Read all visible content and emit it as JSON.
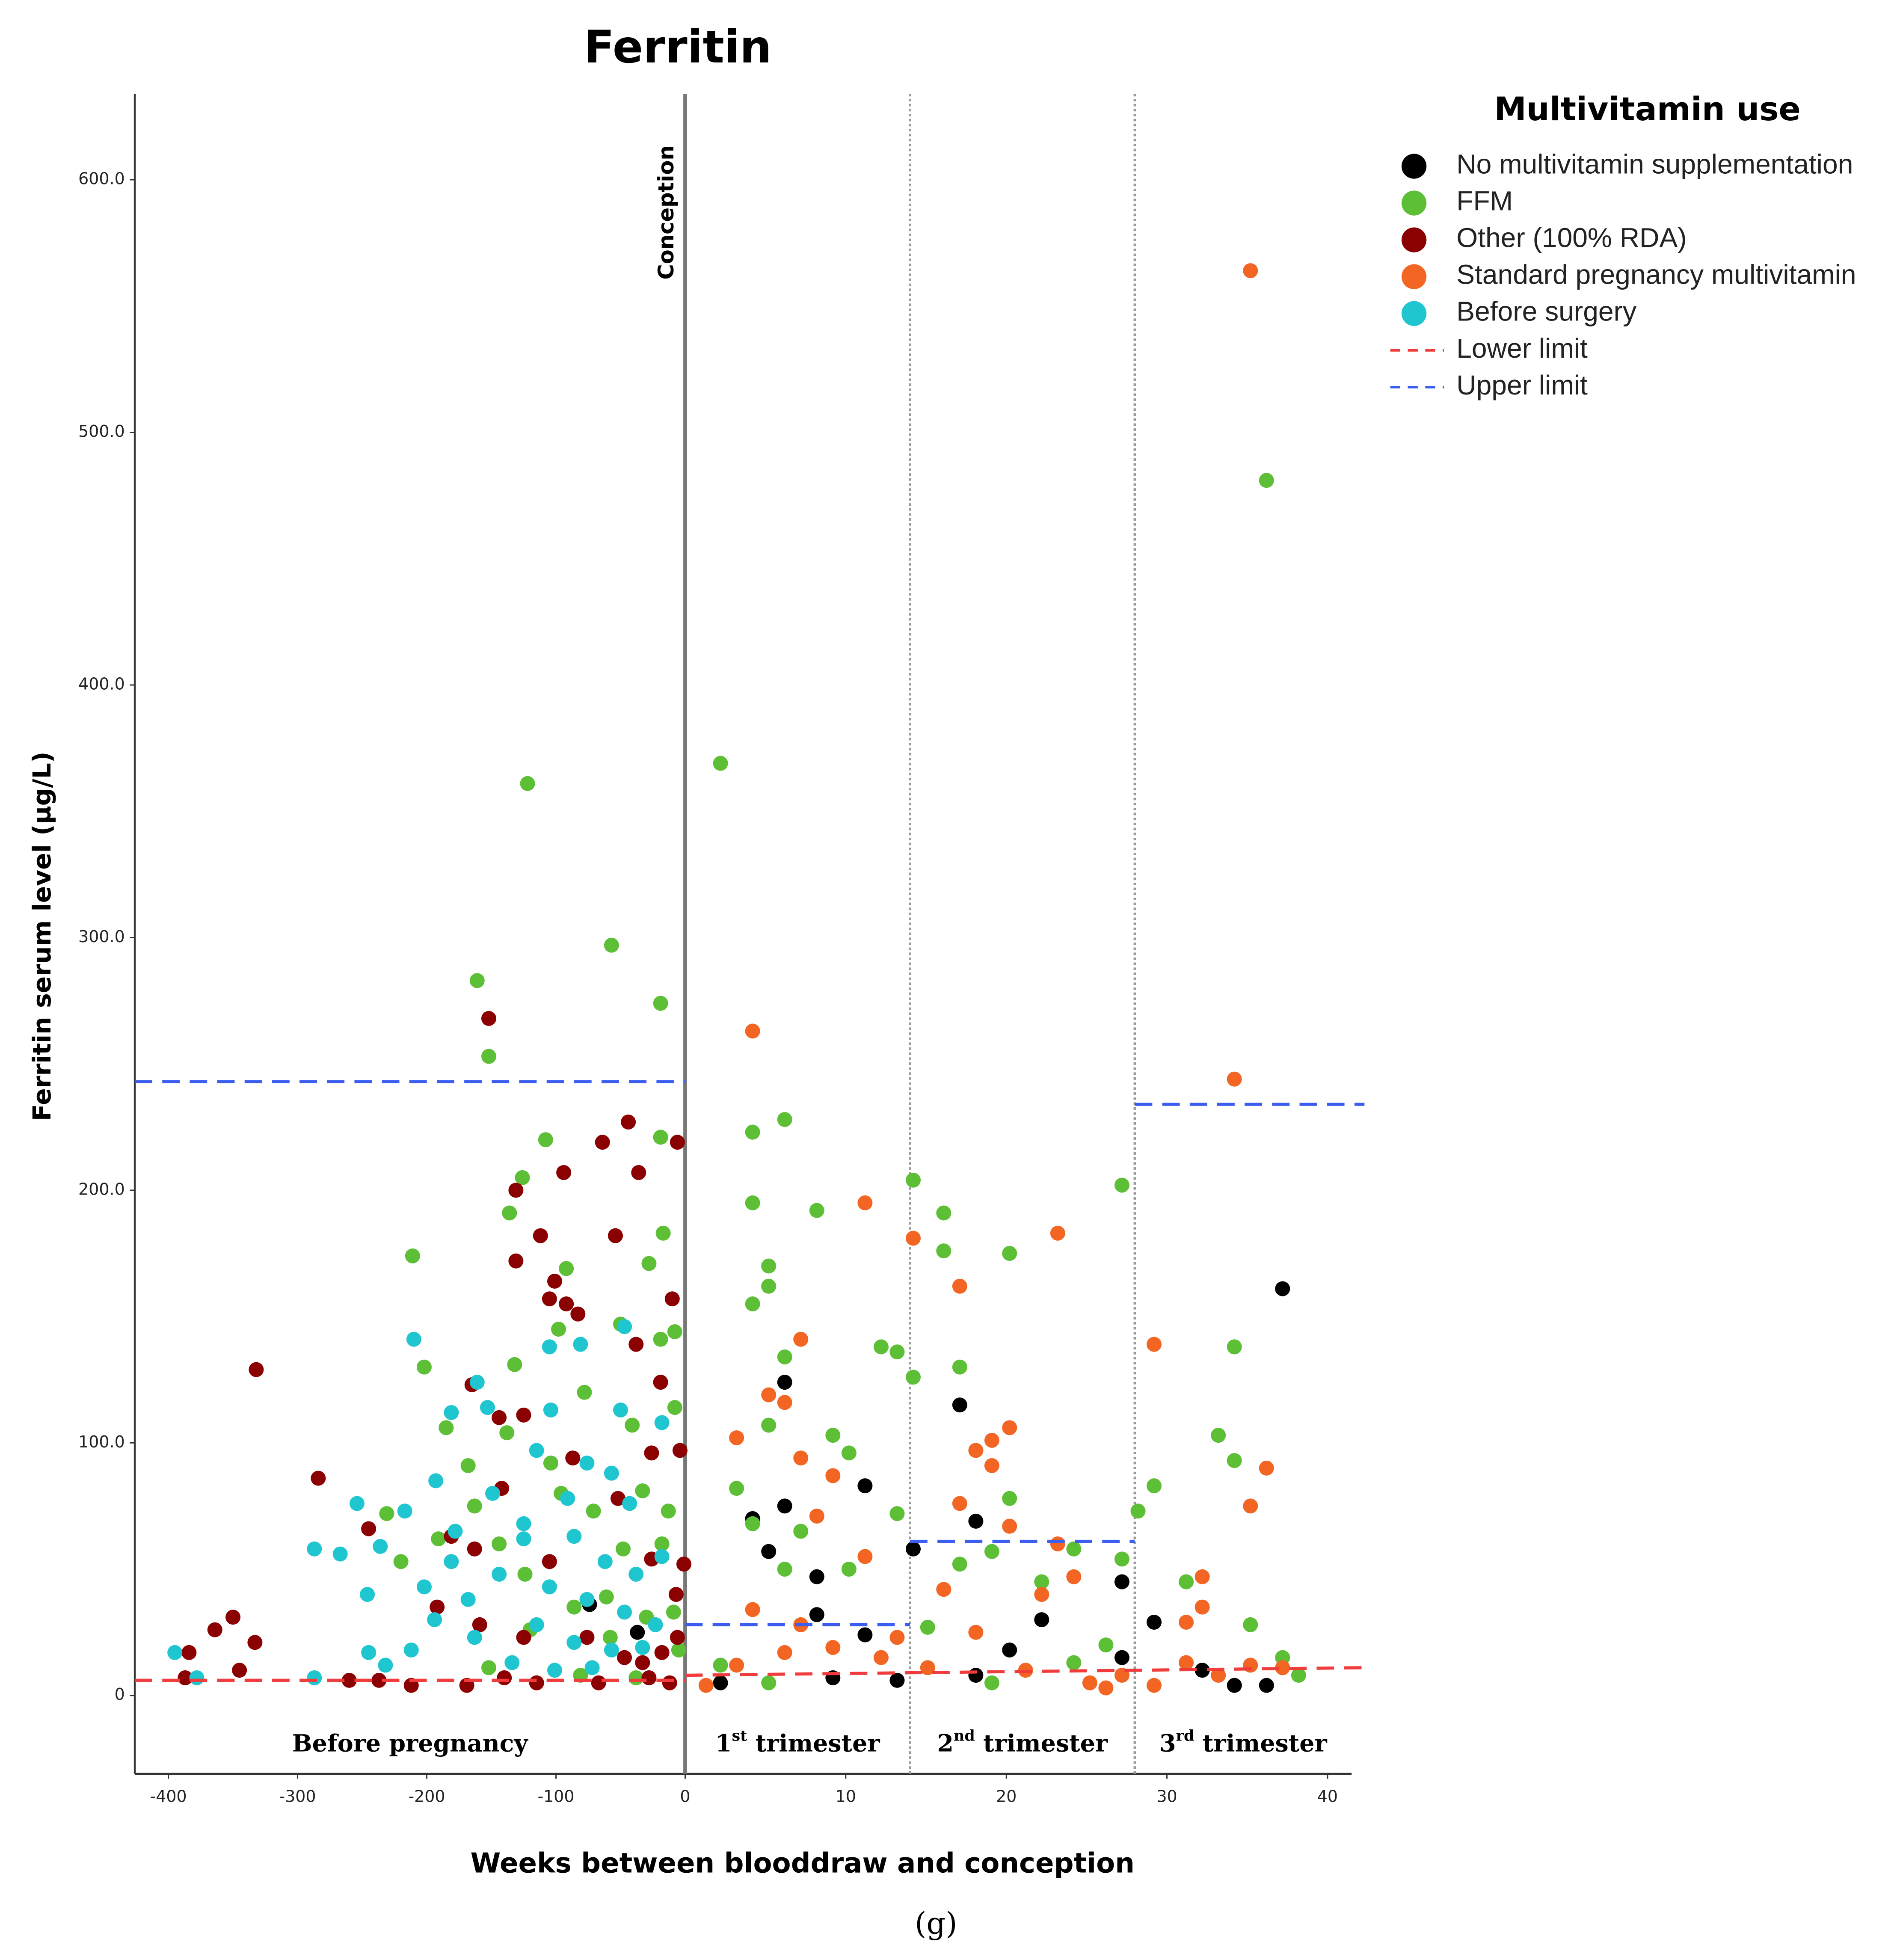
{
  "chart_data": {
    "type": "scatter",
    "title": "Ferritin",
    "xlabel": "Weeks between blooddraw and conception",
    "ylabel": "Ferritin serum level (µg/L)",
    "caption": "(g)",
    "legend_title": "Multivitamin use",
    "legend": "right",
    "xscale": "piecewise",
    "xbreak": 0,
    "xlim": [
      -426,
      41.5
    ],
    "xticks": [
      -400,
      -300,
      -200,
      -100,
      0,
      10,
      20,
      30,
      40
    ],
    "ylim": [
      -31,
      634
    ],
    "yticks": [
      0,
      {
        "value": 100,
        "label": "100.0"
      },
      {
        "value": 200,
        "label": "200.0"
      },
      {
        "value": 300,
        "label": "300.0"
      },
      {
        "value": 400,
        "label": "400.0"
      },
      {
        "value": 500,
        "label": "500.0"
      },
      {
        "value": 600,
        "label": "600.0"
      }
    ],
    "vlines": [
      {
        "x": 0,
        "style": "solid",
        "label": "Conception"
      },
      {
        "x": 14,
        "style": "dotted"
      },
      {
        "x": 28,
        "style": "dotted"
      }
    ],
    "regions": [
      [
        "Before pregnancy"
      ],
      [
        "1",
        "st",
        " trimester"
      ],
      [
        "2",
        "nd",
        " trimester"
      ],
      [
        "3",
        "rd",
        " trimester"
      ]
    ],
    "series": [
      {
        "name": "No multivitamin supplementation",
        "color": "#000000",
        "x": [
          2.2,
          4.2,
          5.2,
          6.2,
          6.2,
          8.2,
          8.2,
          9.2,
          11.2,
          11.2,
          13.2,
          14.2,
          17.1,
          18.1,
          18.1,
          20.2,
          22.2,
          27.2,
          27.2,
          29.2,
          32.2,
          34.2,
          36.2,
          37.2,
          -74,
          -37
        ],
        "y": [
          5,
          70,
          57,
          124,
          75,
          47,
          32,
          7,
          83,
          24,
          6,
          58,
          115,
          69,
          8,
          18,
          30,
          45,
          15,
          29,
          10,
          4,
          4,
          161,
          36,
          25
        ]
      },
      {
        "name": "FFM",
        "color": "#5dbf35",
        "x": [
          2.2,
          4.2,
          4.2,
          6.2,
          8.2,
          5.2,
          5.2,
          4.2,
          6.2,
          5.2,
          9.2,
          10.2,
          12.2,
          13.2,
          14.2,
          14.2,
          16.1,
          16.1,
          17.1,
          18.1,
          20.2,
          20.2,
          27.2,
          28.2,
          29.2,
          34.2,
          33.2,
          34.2,
          36.2,
          35.2,
          31.2,
          37.2,
          38.2,
          3.2,
          4.2,
          6.2,
          7.2,
          10.2,
          13.2,
          15.1,
          17.1,
          19.1,
          22.2,
          24.2,
          27.2,
          26.2,
          24.2,
          19.1,
          2.2,
          5.2,
          -122,
          -57,
          -161,
          -19,
          -152,
          -108,
          -19,
          -126,
          -136,
          -211,
          -92,
          -17,
          -28,
          -202,
          -132,
          -98,
          -50,
          -19,
          -8,
          -185,
          -138,
          -78,
          -41,
          -8,
          -231,
          -191,
          -163,
          -144,
          -124,
          -96,
          -71,
          -61,
          -48,
          -33,
          -13,
          -120,
          -86,
          -58,
          -30,
          -5,
          -152,
          -81,
          -38,
          -9,
          -220,
          -168,
          -104,
          -18
        ],
        "y": [
          369,
          223,
          195,
          228,
          192,
          170,
          162,
          155,
          134,
          107,
          103,
          96,
          138,
          136,
          204,
          126,
          191,
          176,
          130,
          97,
          175,
          78,
          202,
          73,
          83,
          138,
          103,
          93,
          481,
          28,
          45,
          15,
          8,
          82,
          68,
          50,
          65,
          50,
          72,
          27,
          52,
          57,
          45,
          58,
          54,
          20,
          13,
          5,
          12,
          5,
          361,
          297,
          283,
          274,
          253,
          220,
          221,
          205,
          191,
          174,
          169,
          183,
          171,
          130,
          131,
          145,
          147,
          141,
          144,
          106,
          104,
          120,
          107,
          114,
          72,
          62,
          75,
          60,
          48,
          80,
          73,
          39,
          58,
          81,
          73,
          26,
          35,
          23,
          31,
          18,
          11,
          8,
          7,
          33,
          53,
          91,
          92,
          60
        ]
      },
      {
        "name": "Other (100% RDA)",
        "color": "#8b0000",
        "x": [
          -332,
          -284,
          -384,
          -364,
          -350,
          -333,
          -345,
          -387,
          -260,
          -237,
          -245,
          -165,
          -152,
          -131,
          -94,
          -64,
          -44,
          -36,
          -6,
          -112,
          -54,
          -131,
          -101,
          -105,
          -92,
          -83,
          -10,
          -38,
          -19,
          -144,
          -125,
          -87,
          -26,
          -4,
          -142,
          -181,
          -163,
          -105,
          -52,
          -26,
          -1,
          -192,
          -159,
          -125,
          -76,
          -47,
          -33,
          -18,
          -6,
          -169,
          -140,
          -115,
          -67,
          -28,
          -12,
          -212,
          -7
        ],
        "y": [
          129,
          86,
          17,
          26,
          31,
          21,
          10,
          7,
          6,
          6,
          66,
          123,
          268,
          200,
          207,
          219,
          227,
          207,
          219,
          182,
          182,
          172,
          164,
          157,
          155,
          151,
          157,
          139,
          124,
          110,
          111,
          94,
          96,
          97,
          82,
          63,
          58,
          53,
          78,
          54,
          52,
          35,
          28,
          23,
          23,
          15,
          13,
          17,
          23,
          4,
          7,
          5,
          5,
          7,
          5,
          4,
          40
        ]
      },
      {
        "name": "Standard pregnancy multivitamin",
        "color": "#f26522",
        "x": [
          35.2,
          34.2,
          4.2,
          11.2,
          14.2,
          23.2,
          17.1,
          7.2,
          5.2,
          6.2,
          20.2,
          19.1,
          18.1,
          19.1,
          3.2,
          7.2,
          9.2,
          29.2,
          36.2,
          35.2,
          17.1,
          20.2,
          11.2,
          8.2,
          4.2,
          16.1,
          22.2,
          23.2,
          24.2,
          32.2,
          31.2,
          32.2,
          3.2,
          6.2,
          9.2,
          12.2,
          15.1,
          18.1,
          21.2,
          25.2,
          26.2,
          27.2,
          29.2,
          31.2,
          33.2,
          35.2,
          37.2,
          1.3,
          7.2,
          13.2
        ],
        "y": [
          564,
          244,
          263,
          195,
          181,
          183,
          162,
          141,
          119,
          116,
          106,
          101,
          97,
          91,
          102,
          94,
          87,
          139,
          90,
          75,
          76,
          67,
          55,
          71,
          34,
          42,
          40,
          60,
          47,
          47,
          29,
          35,
          12,
          17,
          19,
          15,
          11,
          25,
          10,
          5,
          3,
          8,
          4,
          13,
          8,
          12,
          11,
          4,
          28,
          23
        ]
      },
      {
        "name": "Before surgery",
        "color": "#1fc6cf",
        "x": [
          -395,
          -378,
          -287,
          -287,
          -267,
          -254,
          -246,
          -210,
          -236,
          -217,
          -193,
          -181,
          -161,
          -153,
          -212,
          -245,
          -232,
          -194,
          -168,
          -144,
          -125,
          -105,
          -81,
          -47,
          -104,
          -50,
          -18,
          -115,
          -76,
          -57,
          -91,
          -43,
          -125,
          -86,
          -62,
          -38,
          -18,
          -105,
          -76,
          -47,
          -23,
          -115,
          -86,
          -57,
          -33,
          -163,
          -181,
          -202,
          -134,
          -72,
          -101,
          -178,
          -149
        ],
        "y": [
          17,
          7,
          7,
          58,
          56,
          76,
          40,
          141,
          59,
          73,
          85,
          112,
          124,
          114,
          18,
          17,
          12,
          30,
          38,
          48,
          62,
          138,
          139,
          146,
          113,
          113,
          108,
          97,
          92,
          88,
          78,
          76,
          68,
          63,
          53,
          48,
          55,
          43,
          38,
          33,
          28,
          28,
          21,
          18,
          19,
          23,
          53,
          43,
          13,
          11,
          10,
          65,
          80
        ]
      }
    ],
    "reference_lines": [
      {
        "name": "Lower limit",
        "color": "#f03c3c",
        "segments": [
          {
            "x": [
              -426,
              0
            ],
            "y": [
              6,
              6
            ]
          },
          {
            "x": [
              0,
              42.3
            ],
            "y": [
              8,
              11
            ]
          }
        ]
      },
      {
        "name": "Upper limit",
        "color": "#3c5ef0",
        "segments": [
          {
            "x": [
              -426,
              0
            ],
            "y": [
              243,
              243
            ]
          },
          {
            "x": [
              0,
              14
            ],
            "y": [
              28,
              28
            ]
          },
          {
            "x": [
              14,
              28
            ],
            "y": [
              61,
              61
            ]
          },
          {
            "x": [
              28,
              42.3
            ],
            "y": [
              234,
              234
            ]
          }
        ]
      }
    ]
  }
}
